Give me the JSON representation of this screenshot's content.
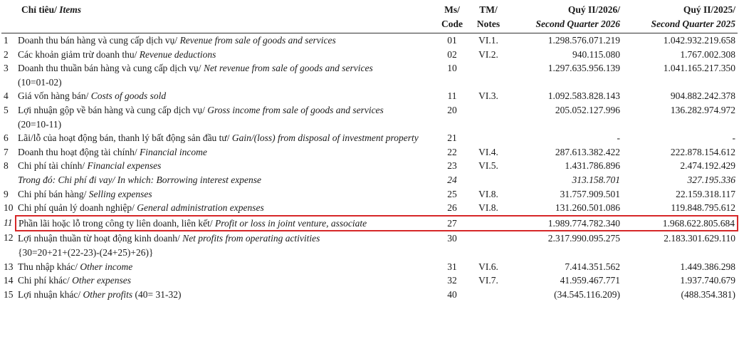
{
  "header": {
    "items_vn": "Chỉ tiêu/",
    "items_en": "Items",
    "code_1": "Ms/",
    "code_2": "Code",
    "notes_1": "TM/",
    "notes_2": "Notes",
    "q2026_1": "Quý II/2026/",
    "q2026_2": "Second Quarter 2026",
    "q2025_1": "Quý II/2025/",
    "q2025_2": "Second Quarter 2025"
  },
  "rows": [
    {
      "no": "1",
      "vn": "Doanh thu bán hàng và cung cấp dịch vụ/",
      "en": "Revenue from sale of goods and services",
      "code": "01",
      "notes": "VI.1.",
      "q2026": "1.298.576.071.219",
      "q2025": "1.042.932.219.658"
    },
    {
      "no": "2",
      "vn": "Các khoản giảm trừ doanh thu/",
      "en": "Revenue deductions",
      "code": "02",
      "notes": "VI.2.",
      "q2026": "940.115.080",
      "q2025": "1.767.002.308"
    },
    {
      "no": "3",
      "vn": "Doanh thu thuần bán hàng và cung cấp dịch vụ/",
      "en": "Net revenue from sale of goods and services",
      "formula": "(10=01-02)",
      "code": "10",
      "q2026": "1.297.635.956.139",
      "q2025": "1.041.165.217.350"
    },
    {
      "no": "4",
      "vn": "Giá vốn hàng bán/",
      "en": "Costs of goods sold",
      "code": "11",
      "notes": "VI.3.",
      "q2026": "1.092.583.828.143",
      "q2025": "904.882.242.378"
    },
    {
      "no": "5",
      "vn": "Lợi nhuận gộp về bán hàng và cung cấp dịch vụ/",
      "en": "Gross income from sale of goods and services",
      "formula": "(20=10-11)",
      "code": "20",
      "q2026": "205.052.127.996",
      "q2025": "136.282.974.972"
    },
    {
      "no": "6",
      "vn": "Lãi/lỗ của hoạt động bán, thanh lý bất động sản đầu tư/",
      "en": "Gain/(loss) from disposal of investment property",
      "code": "21",
      "q2026": "-",
      "q2025": "-"
    },
    {
      "no": "7",
      "vn": "Doanh thu hoạt động tài chính/",
      "en": "Financial income",
      "code": "22",
      "notes": "VI.4.",
      "q2026": "287.613.382.422",
      "q2025": "222.878.154.612"
    },
    {
      "no": "8",
      "vn": "Chi phí tài chính/",
      "en": "Financial expenses",
      "code": "23",
      "notes": "VI.5.",
      "q2026": "1.431.786.896",
      "q2025": "2.474.192.429"
    },
    {
      "vn": "Trong đó: Chi phí đi vay/",
      "en": "In which: Borrowing interest expense",
      "code": "24",
      "q2026": "313.158.701",
      "q2025": "327.195.336"
    },
    {
      "no": "9",
      "vn": "Chi phí bán hàng/",
      "en": "Selling expenses",
      "code": "25",
      "notes": "VI.8.",
      "q2026": "31.757.909.501",
      "q2025": "22.159.318.117"
    },
    {
      "no": "10",
      "vn": "Chi phí quản lý doanh nghiệp/",
      "en": "General administration expenses",
      "code": "26",
      "notes": "VI.8.",
      "q2026": "131.260.501.086",
      "q2025": "119.848.795.612"
    },
    {
      "no": "11",
      "vn": "Phần lãi hoặc lỗ trong công ty liên doanh, liên kết/",
      "en": "Profit or loss in joint venture, associate",
      "code": "27",
      "q2026": "1.989.774.782.340",
      "q2025": "1.968.622.805.684"
    },
    {
      "no": "12",
      "vn": "Lợi nhuận thuần từ hoạt động kinh doanh/",
      "en": "Net profits from operating activities",
      "formula": "{30=20+21+(22-23)-(24+25)+26)}",
      "code": "30",
      "q2026": "2.317.990.095.275",
      "q2025": "2.183.301.629.110"
    },
    {
      "no": "13",
      "vn": "Thu nhập khác/",
      "en": "Other income",
      "code": "31",
      "notes": "VI.6.",
      "q2026": "7.414.351.562",
      "q2025": "1.449.386.298"
    },
    {
      "no": "14",
      "vn": "Chi phí khác/",
      "en": "Other expenses",
      "code": "32",
      "notes": "VI.7.",
      "q2026": "41.959.467.771",
      "q2025": "1.937.740.679"
    },
    {
      "no": "15",
      "vn": "Lợi nhuận khác/",
      "en": "Other profits",
      "formula": "(40= 31-32)",
      "code": "40",
      "q2026": "(34.545.116.209)",
      "q2025": "(488.354.381)"
    }
  ]
}
